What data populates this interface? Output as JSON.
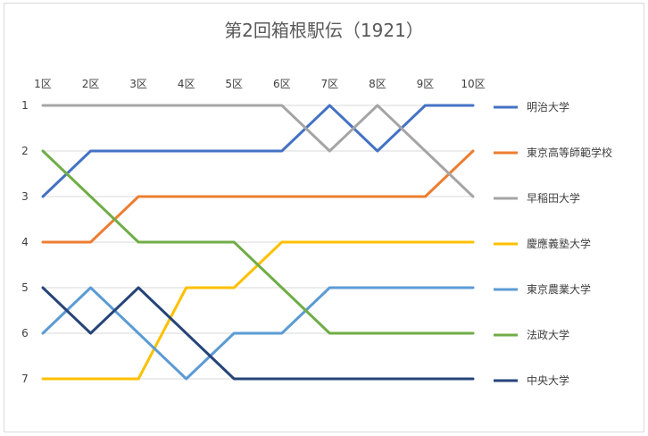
{
  "chart_data": {
    "type": "line",
    "title": "第2回箱根駅伝（1921）",
    "xlabel": "",
    "ylabel": "",
    "categories": [
      "1区",
      "2区",
      "3区",
      "4区",
      "5区",
      "6区",
      "7区",
      "8区",
      "9区",
      "10区"
    ],
    "y_ticks": [
      "1",
      "2",
      "3",
      "4",
      "5",
      "6",
      "7"
    ],
    "ylim": [
      1,
      7
    ],
    "y_reversed": true,
    "grid": true,
    "legend_position": "right",
    "series": [
      {
        "name": "明治大学",
        "color": "#4472C4",
        "values": [
          3,
          2,
          2,
          2,
          2,
          2,
          1,
          2,
          1,
          1
        ]
      },
      {
        "name": "東京高等師範学校",
        "color": "#ED7D31",
        "values": [
          4,
          4,
          3,
          3,
          3,
          3,
          3,
          3,
          3,
          2
        ]
      },
      {
        "name": "早稲田大学",
        "color": "#A5A5A5",
        "values": [
          1,
          1,
          1,
          1,
          1,
          1,
          2,
          1,
          2,
          3
        ]
      },
      {
        "name": "慶應義塾大学",
        "color": "#FFC000",
        "values": [
          7,
          7,
          7,
          5,
          5,
          4,
          4,
          4,
          4,
          4
        ]
      },
      {
        "name": "東京農業大学",
        "color": "#5B9BD5",
        "values": [
          6,
          5,
          6,
          7,
          6,
          6,
          5,
          5,
          5,
          5
        ]
      },
      {
        "name": "法政大学",
        "color": "#70AD47",
        "values": [
          2,
          3,
          4,
          4,
          4,
          5,
          6,
          6,
          6,
          6
        ]
      },
      {
        "name": "中央大学",
        "color": "#264478",
        "values": [
          5,
          6,
          5,
          6,
          7,
          7,
          7,
          7,
          7,
          7
        ]
      }
    ]
  }
}
